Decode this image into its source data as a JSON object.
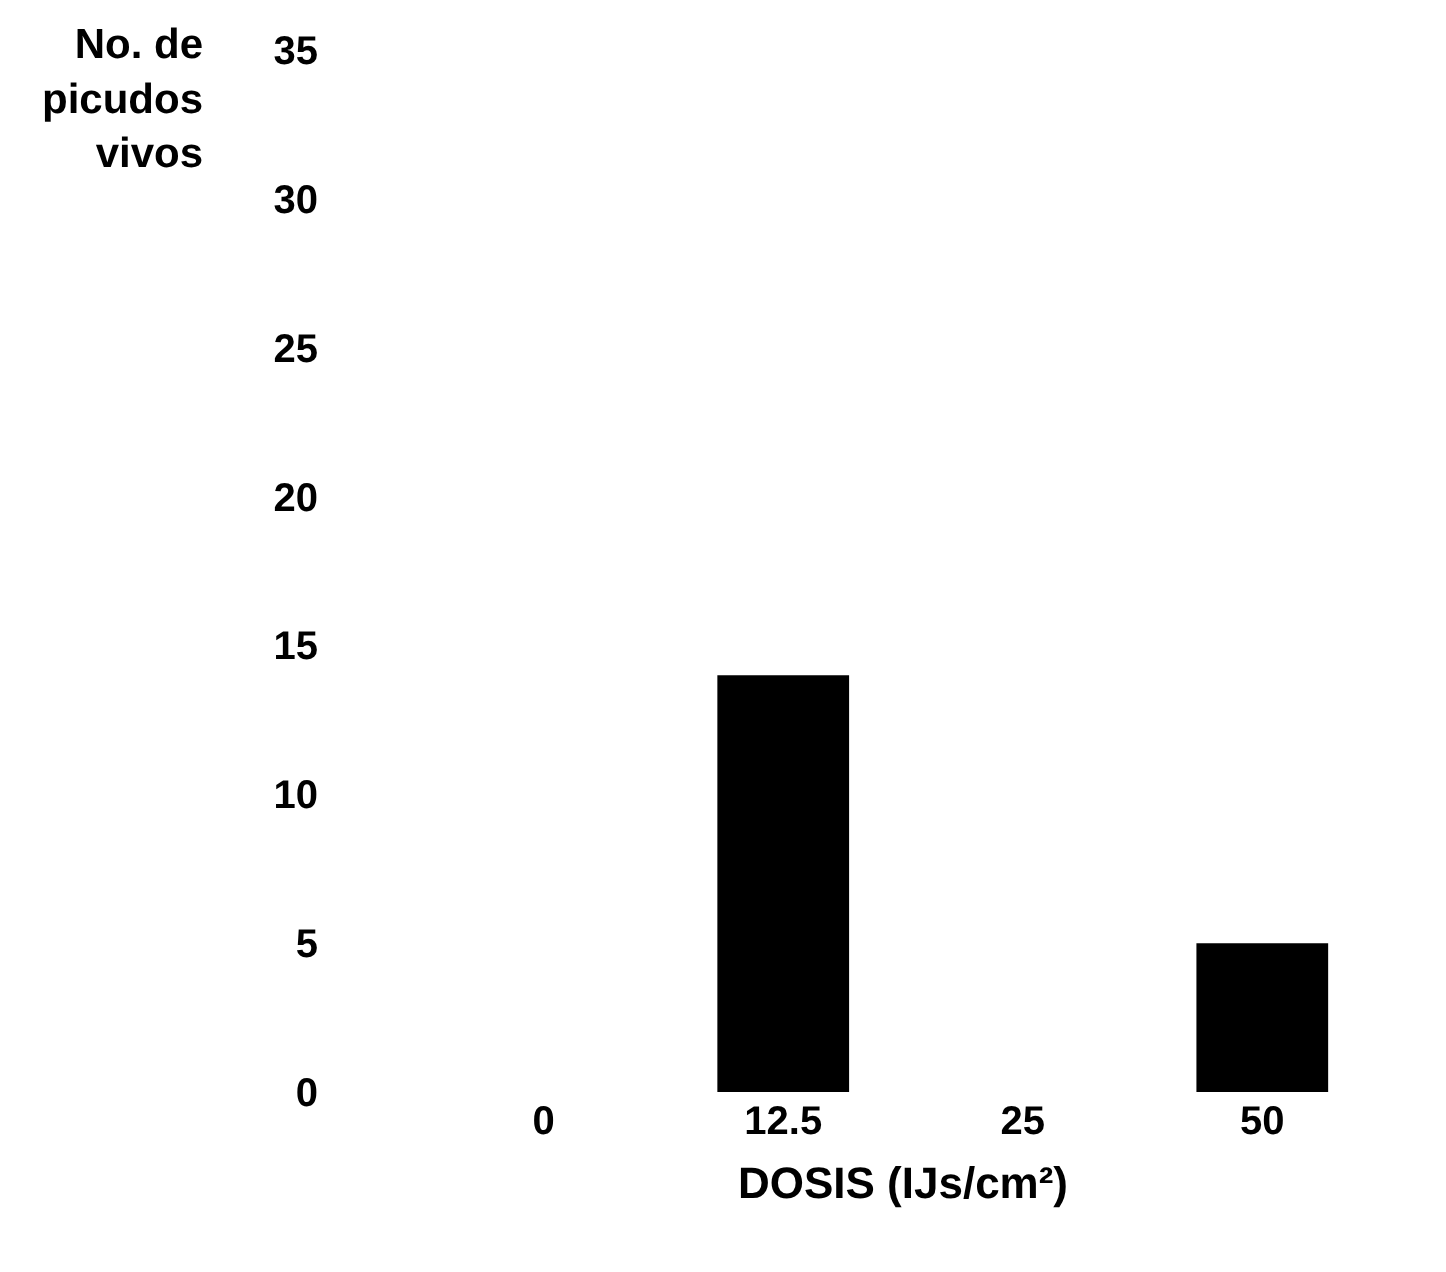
{
  "chart_data": {
    "type": "bar",
    "categories": [
      "0",
      "12.5",
      "25",
      "50"
    ],
    "values": [
      0,
      14,
      0,
      5
    ],
    "color": "#000000",
    "ylim": [
      0,
      35
    ],
    "yticks": [
      0,
      5,
      10,
      15,
      20,
      25,
      30,
      35
    ],
    "xlabel": "DOSIS (IJs/cm²)",
    "ylabel": "No. de picudos vivos"
  }
}
